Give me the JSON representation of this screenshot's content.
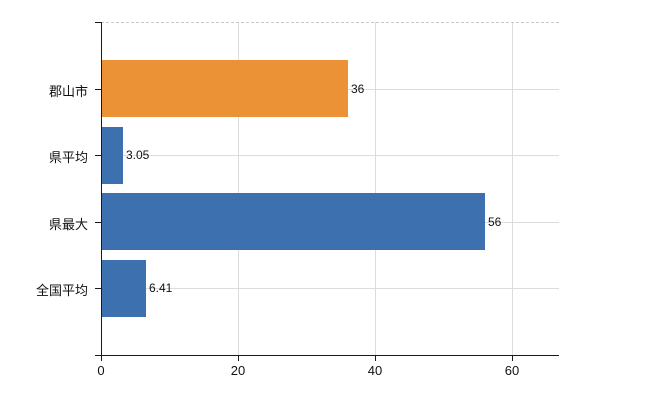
{
  "chart_data": {
    "type": "bar",
    "orientation": "horizontal",
    "title": "",
    "xlabel": "",
    "ylabel": "",
    "categories": [
      "郡山市",
      "県平均",
      "県最大",
      "全国平均"
    ],
    "series": [
      {
        "name": "values",
        "values": [
          36,
          3.05,
          56,
          6.41
        ]
      }
    ],
    "value_labels": [
      "36",
      "3.05",
      "56",
      "6.41"
    ],
    "bar_colors": [
      "#ec9236",
      "#3c70ae",
      "#3c70ae",
      "#3c70ae"
    ],
    "x_tick_labels": [
      "0",
      "20",
      "40",
      "60"
    ],
    "x_tick_values": [
      0,
      20,
      40,
      60
    ],
    "xlim": [
      0,
      66.9
    ],
    "grid": true,
    "legend_position": "none"
  },
  "style": {
    "background": "#ffffff",
    "axis_color": "#1a1a1a",
    "grid_color": "#dadeda",
    "top_border_color": "#c9c9c9",
    "text_color": "#111111"
  }
}
